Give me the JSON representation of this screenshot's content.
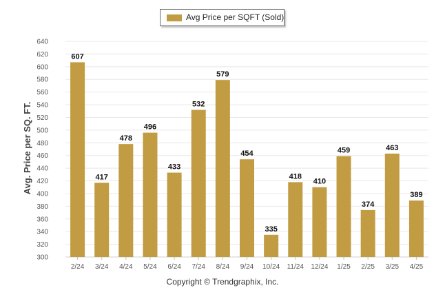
{
  "colors": {
    "bar": "#C29C42",
    "grid": "#e8e8e8",
    "axis_text": "#555555",
    "label_text": "#111111"
  },
  "footer": {
    "copyright": "Copyright © Trendgraphix, Inc."
  },
  "chart_data": {
    "type": "bar",
    "ylabel": "Avg. Price per SQ. FT.",
    "xlabel": "",
    "ylim": [
      300,
      640
    ],
    "ytick_step": 20,
    "grid": true,
    "legend_position": "top-center",
    "categories": [
      "2/24",
      "3/24",
      "4/24",
      "5/24",
      "6/24",
      "7/24",
      "8/24",
      "9/24",
      "10/24",
      "11/24",
      "12/24",
      "1/25",
      "2/25",
      "3/25",
      "4/25"
    ],
    "series": [
      {
        "name": "Avg Price per SQFT (Sold)",
        "values": [
          607,
          417,
          478,
          496,
          433,
          532,
          579,
          454,
          335,
          418,
          410,
          459,
          374,
          463,
          389
        ]
      }
    ]
  }
}
